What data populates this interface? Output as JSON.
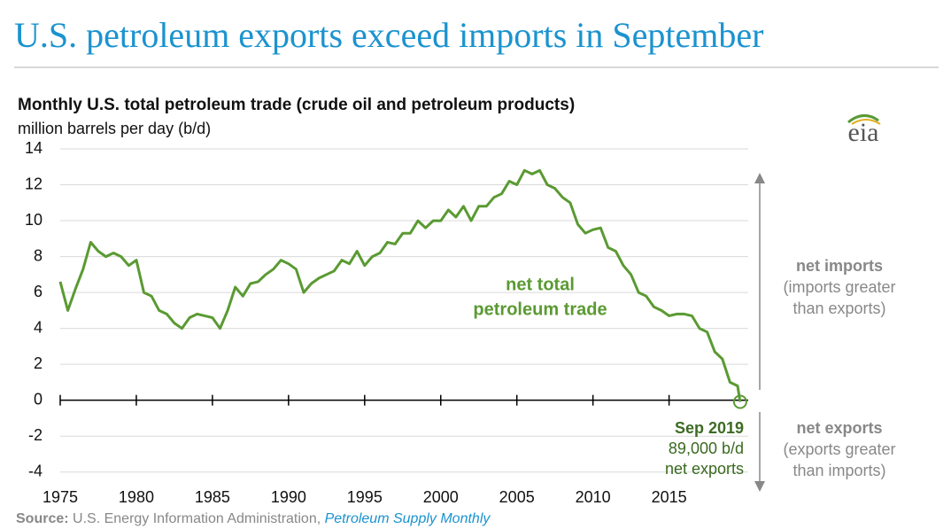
{
  "header": {
    "title": "U.S. petroleum exports exceed imports in September",
    "logo": "eia"
  },
  "chart_data": {
    "type": "line",
    "title": "Monthly U.S. total petroleum trade (crude oil and petroleum products)",
    "subtitle": "million barrels per day (b/d)",
    "x": [
      1975,
      1975.5,
      1976,
      1976.5,
      1977,
      1977.5,
      1978,
      1978.5,
      1979,
      1979.5,
      1980,
      1980.5,
      1981,
      1981.5,
      1982,
      1982.5,
      1983,
      1983.5,
      1984,
      1984.5,
      1985,
      1985.5,
      1986,
      1986.5,
      1987,
      1987.5,
      1988,
      1988.5,
      1989,
      1989.5,
      1990,
      1990.5,
      1991,
      1991.5,
      1992,
      1992.5,
      1993,
      1993.5,
      1994,
      1994.5,
      1995,
      1995.5,
      1996,
      1996.5,
      1997,
      1997.5,
      1998,
      1998.5,
      1999,
      1999.5,
      2000,
      2000.5,
      2001,
      2001.5,
      2002,
      2002.5,
      2003,
      2003.5,
      2004,
      2004.5,
      2005,
      2005.5,
      2006,
      2006.5,
      2007,
      2007.5,
      2008,
      2008.5,
      2009,
      2009.5,
      2010,
      2010.5,
      2011,
      2011.5,
      2012,
      2012.5,
      2013,
      2013.5,
      2014,
      2014.5,
      2015,
      2015.5,
      2016,
      2016.5,
      2017,
      2017.5,
      2018,
      2018.5,
      2019,
      2019.5,
      2019.67
    ],
    "series": [
      {
        "name": "net total petroleum trade",
        "label_lines": [
          "net total",
          "petroleum trade"
        ],
        "color": "#5a9a32",
        "values": [
          6.6,
          5.0,
          6.2,
          7.3,
          8.8,
          8.3,
          8.0,
          8.2,
          8.0,
          7.5,
          7.8,
          6.0,
          5.8,
          5.0,
          4.8,
          4.3,
          4.0,
          4.6,
          4.8,
          4.7,
          4.6,
          4.0,
          5.0,
          6.3,
          5.8,
          6.5,
          6.6,
          7.0,
          7.3,
          7.8,
          7.6,
          7.3,
          6.0,
          6.5,
          6.8,
          7.0,
          7.2,
          7.8,
          7.6,
          8.3,
          7.5,
          8.0,
          8.2,
          8.8,
          8.7,
          9.3,
          9.3,
          10.0,
          9.6,
          10.0,
          10.0,
          10.6,
          10.2,
          10.8,
          10.0,
          10.8,
          10.8,
          11.3,
          11.5,
          12.2,
          12.0,
          12.8,
          12.6,
          12.8,
          12.0,
          11.8,
          11.3,
          11.0,
          9.8,
          9.3,
          9.5,
          9.6,
          8.5,
          8.3,
          7.5,
          7.0,
          6.0,
          5.8,
          5.2,
          5.0,
          4.7,
          4.8,
          4.8,
          4.7,
          4.0,
          3.8,
          2.7,
          2.3,
          1.0,
          0.8,
          -0.089
        ]
      }
    ],
    "xlim": [
      1975,
      2020.2
    ],
    "xticks": [
      1975,
      1980,
      1985,
      1990,
      1995,
      2000,
      2005,
      2010,
      2015
    ],
    "ylim": [
      -5,
      14
    ],
    "yticks": [
      -4,
      -2,
      0,
      2,
      4,
      6,
      8,
      10,
      12,
      14
    ],
    "grid": true,
    "end_note": {
      "date": "Sep 2019",
      "amount": "89,000 b/d",
      "text": "net exports"
    },
    "side_labels": {
      "up": [
        "net imports",
        "(imports greater",
        "than exports)"
      ],
      "down": [
        "net exports",
        "(exports greater",
        "than imports)"
      ]
    },
    "source": {
      "label": "Source:",
      "text": "U.S. Energy Information Administration,",
      "publication": "Petroleum Supply Monthly"
    }
  }
}
